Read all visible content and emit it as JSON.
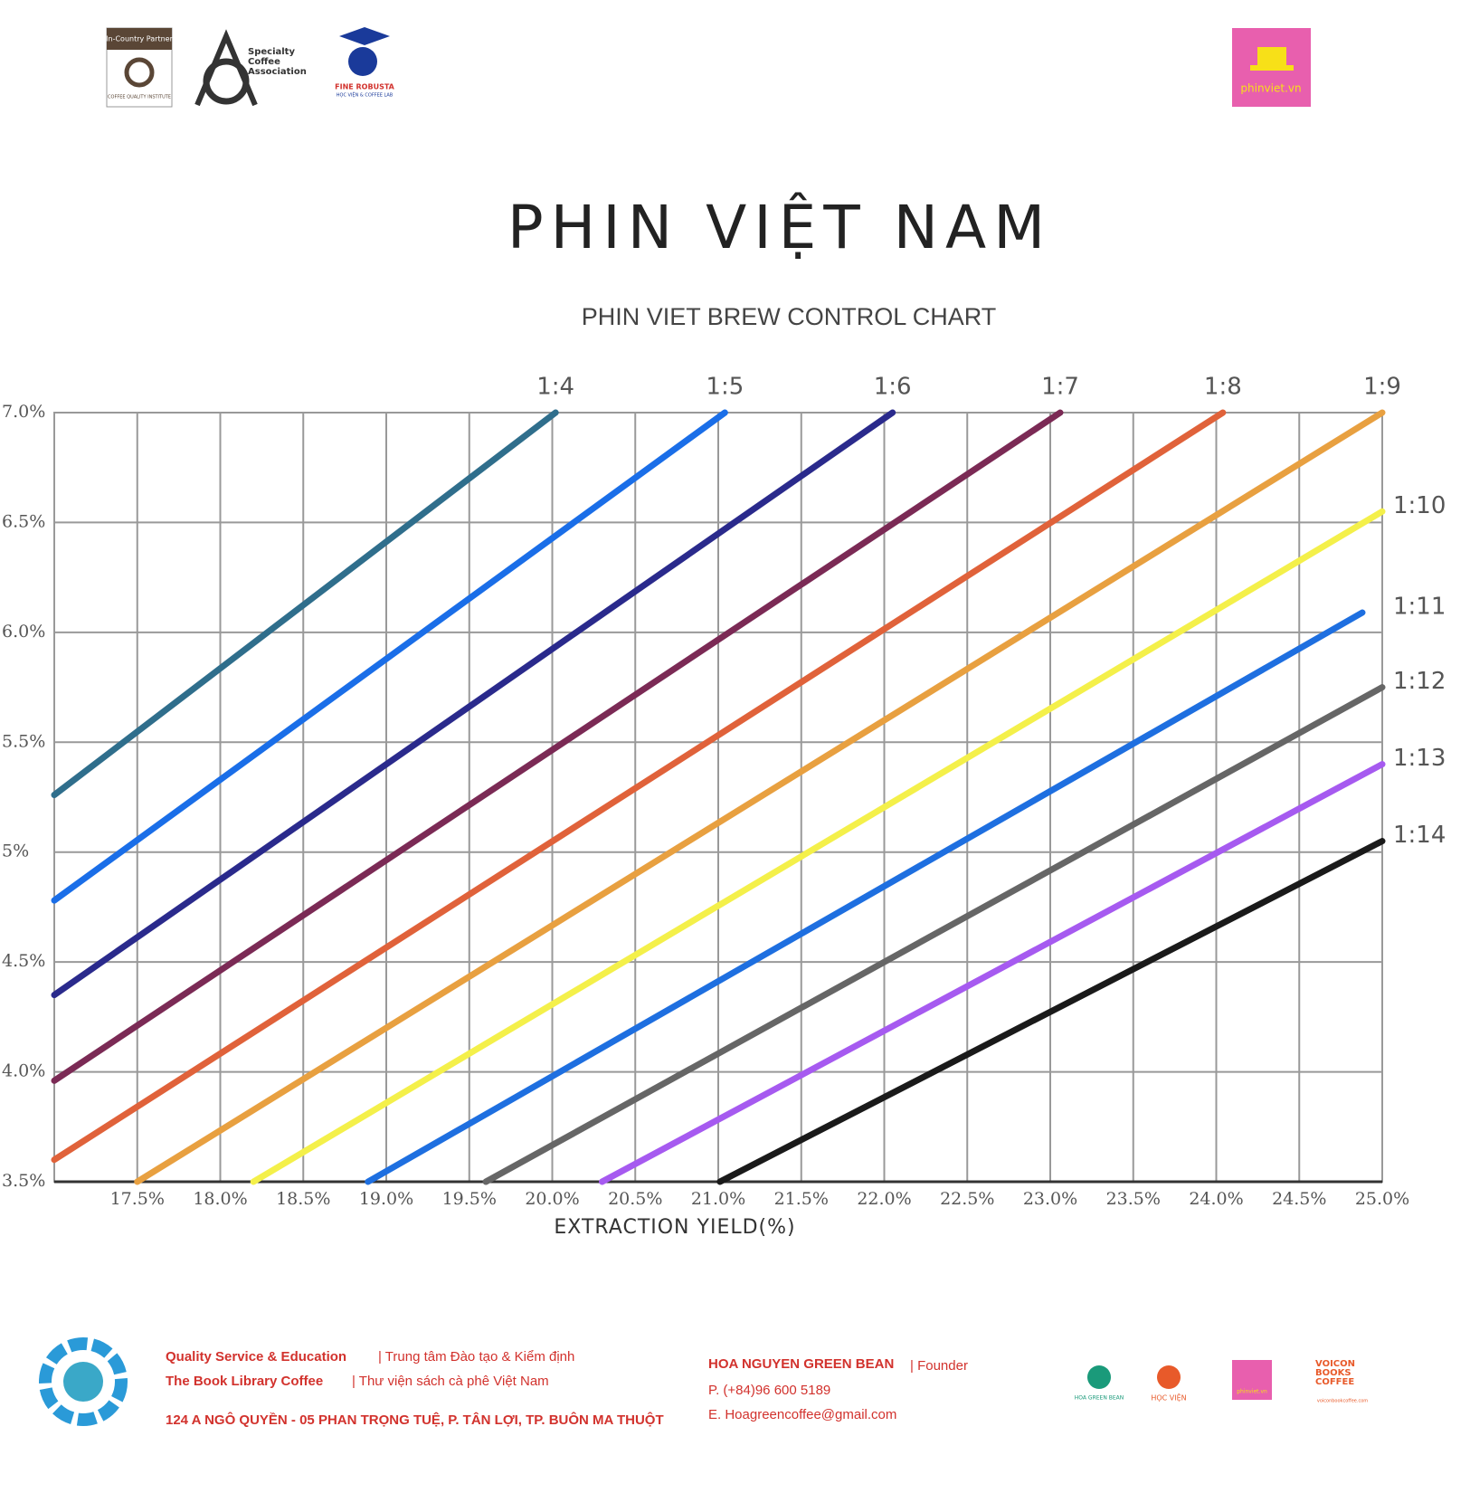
{
  "header": {
    "cqi_top": "In-Country Partner",
    "cqi_bottom": "COFFEE QUALITY INSTITUTE",
    "sca": "Specialty Coffee Association",
    "robusta": "FINE ROBUSTA",
    "robusta_sub": "HỌC VIỆN & COFFEE LAB",
    "phinviet": "phinviet.vn"
  },
  "chart_data": {
    "type": "line",
    "title": "PHIN VIỆT NAM",
    "subtitle": "PHIN VIET BREW CONTROL CHART",
    "x_label": "EXTRACTION YIELD(%)",
    "xlim": [
      17.0,
      25.0
    ],
    "ylim": [
      3.5,
      7.0
    ],
    "xticks": [
      {
        "value": 17.5,
        "label": "17.5%"
      },
      {
        "value": 18.0,
        "label": "18.0%"
      },
      {
        "value": 18.5,
        "label": "18.5%"
      },
      {
        "value": 19.0,
        "label": "19.0%"
      },
      {
        "value": 19.5,
        "label": "19.5%"
      },
      {
        "value": 20.0,
        "label": "20.0%"
      },
      {
        "value": 20.5,
        "label": "20.5%"
      },
      {
        "value": 21.0,
        "label": "21.0%"
      },
      {
        "value": 21.5,
        "label": "21.5%"
      },
      {
        "value": 22.0,
        "label": "22.0%"
      },
      {
        "value": 22.5,
        "label": "22.5%"
      },
      {
        "value": 23.0,
        "label": "23.0%"
      },
      {
        "value": 23.5,
        "label": "23.5%"
      },
      {
        "value": 24.0,
        "label": "24.0%"
      },
      {
        "value": 24.5,
        "label": "24.5%"
      },
      {
        "value": 25.0,
        "label": "25.0%"
      }
    ],
    "yticks": [
      {
        "value": 7.0,
        "label": "7.0%"
      },
      {
        "value": 6.5,
        "label": "6.5%"
      },
      {
        "value": 6.0,
        "label": "6.0%"
      },
      {
        "value": 5.5,
        "label": "5.5%"
      },
      {
        "value": 5,
        "label": "5%"
      },
      {
        "value": 4.5,
        "label": "4.5%"
      },
      {
        "value": 4.0,
        "label": "4.0%"
      },
      {
        "value": 3.5,
        "label": "3.5%"
      }
    ],
    "grid": true,
    "series": [
      {
        "name": "1:4",
        "color": "#2f6e8c",
        "x": [
          17.0,
          20.02
        ],
        "values": [
          5.26,
          7.0
        ]
      },
      {
        "name": "1:5",
        "color": "#1a6ee8",
        "x": [
          17.0,
          21.04
        ],
        "values": [
          4.78,
          7.0
        ]
      },
      {
        "name": "1:6",
        "color": "#2a2a8c",
        "x": [
          17.0,
          22.05
        ],
        "values": [
          4.35,
          7.0
        ]
      },
      {
        "name": "1:7",
        "color": "#7b2a55",
        "x": [
          17.0,
          23.06
        ],
        "values": [
          3.96,
          7.0
        ]
      },
      {
        "name": "1:8",
        "color": "#e0623a",
        "x": [
          17.0,
          24.04
        ],
        "values": [
          3.6,
          7.0
        ]
      },
      {
        "name": "1:9",
        "color": "#e8a040",
        "x": [
          17.5,
          25.0
        ],
        "values": [
          3.5,
          7.0
        ]
      },
      {
        "name": "1:10",
        "color": "#f4f04a",
        "x": [
          18.2,
          25.0
        ],
        "values": [
          3.5,
          6.55
        ]
      },
      {
        "name": "1:11",
        "color": "#1e6fe0",
        "x": [
          18.89,
          24.88
        ],
        "values": [
          3.5,
          6.09
        ]
      },
      {
        "name": "1:12",
        "color": "#666666",
        "x": [
          19.6,
          25.0
        ],
        "values": [
          3.5,
          5.75
        ]
      },
      {
        "name": "1:13",
        "color": "#a65af0",
        "x": [
          20.3,
          25.0
        ],
        "values": [
          3.5,
          5.4
        ]
      },
      {
        "name": "1:14",
        "color": "#1a1a1a",
        "x": [
          21.01,
          25.0
        ],
        "values": [
          3.5,
          5.05
        ]
      }
    ]
  },
  "footer": {
    "line1_bold": "Quality Service & Education",
    "line1": "| Trung tâm Đào tạo & Kiểm định",
    "line2_bold": "The Book Library Coffee",
    "line2": "| Thư viện sách cà phê Việt Nam",
    "address": "124 A NGÔ QUYỀN - 05 PHAN TRỌNG TUỆ, P. TÂN LỢI, TP. BUÔN MA THUỘT",
    "founder_name": "HOA NGUYEN GREEN BEAN",
    "founder_role": "| Founder",
    "phone": "P. (+84)96 600 5189",
    "email": "E. Hoagreencoffee@gmail.com",
    "logo1": "HOA GREEN BEAN",
    "logo2": "HỌC VIỆN",
    "logo3": "phinviet.vn",
    "logo4": "VOICON BOOKS COFFEE",
    "logo4_url": "voiconbookcoffee.com"
  }
}
